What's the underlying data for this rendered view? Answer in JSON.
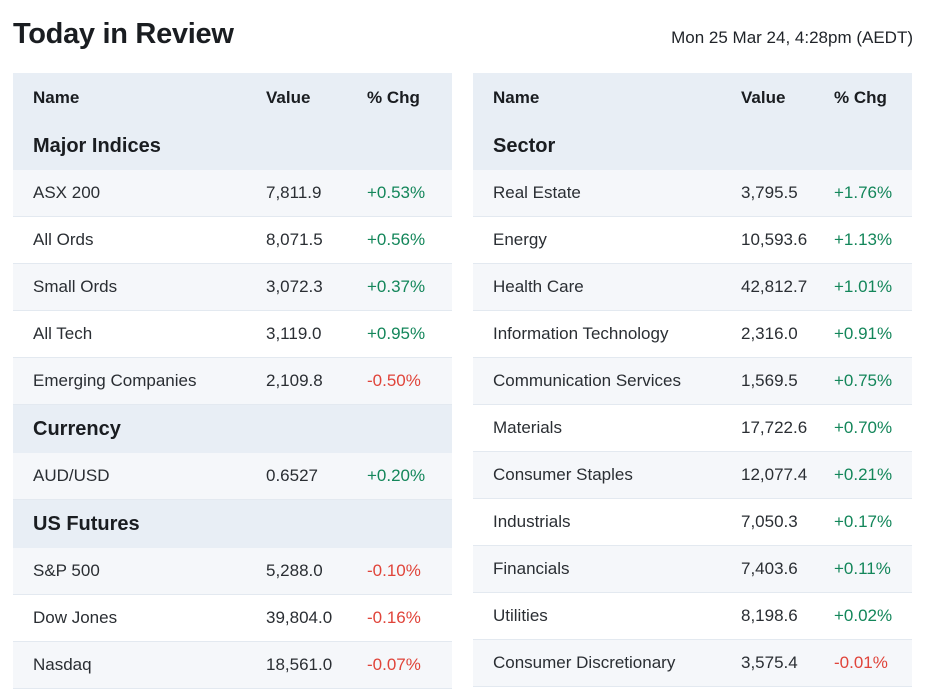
{
  "page": {
    "title": "Today in Review",
    "timestamp": "Mon 25 Mar 24, 4:28pm (AEDT)"
  },
  "colors": {
    "positive": "#13865a",
    "negative": "#e0443a",
    "header_bg": "#e8eef5",
    "alt_row_bg": "#f5f7fa"
  },
  "left_table": {
    "headers": {
      "name": "Name",
      "value": "Value",
      "change": "% Chg"
    },
    "sections": [
      {
        "title": "Major Indices",
        "rows": [
          {
            "name": "ASX 200",
            "value": "7,811.9",
            "change": "+0.53%"
          },
          {
            "name": "All Ords",
            "value": "8,071.5",
            "change": "+0.56%"
          },
          {
            "name": "Small Ords",
            "value": "3,072.3",
            "change": "+0.37%"
          },
          {
            "name": "All Tech",
            "value": "3,119.0",
            "change": "+0.95%"
          },
          {
            "name": "Emerging Companies",
            "value": "2,109.8",
            "change": "-0.50%"
          }
        ]
      },
      {
        "title": "Currency",
        "rows": [
          {
            "name": "AUD/USD",
            "value": "0.6527",
            "change": "+0.20%"
          }
        ]
      },
      {
        "title": "US Futures",
        "rows": [
          {
            "name": "S&P 500",
            "value": "5,288.0",
            "change": "-0.10%"
          },
          {
            "name": "Dow Jones",
            "value": "39,804.0",
            "change": "-0.16%"
          },
          {
            "name": "Nasdaq",
            "value": "18,561.0",
            "change": "-0.07%"
          }
        ]
      }
    ]
  },
  "right_table": {
    "headers": {
      "name": "Name",
      "value": "Value",
      "change": "% Chg"
    },
    "sections": [
      {
        "title": "Sector",
        "rows": [
          {
            "name": "Real Estate",
            "value": "3,795.5",
            "change": "+1.76%"
          },
          {
            "name": "Energy",
            "value": "10,593.6",
            "change": "+1.13%"
          },
          {
            "name": "Health Care",
            "value": "42,812.7",
            "change": "+1.01%"
          },
          {
            "name": "Information Technology",
            "value": "2,316.0",
            "change": "+0.91%"
          },
          {
            "name": "Communication Services",
            "value": "1,569.5",
            "change": "+0.75%"
          },
          {
            "name": "Materials",
            "value": "17,722.6",
            "change": "+0.70%"
          },
          {
            "name": "Consumer Staples",
            "value": "12,077.4",
            "change": "+0.21%"
          },
          {
            "name": "Industrials",
            "value": "7,050.3",
            "change": "+0.17%"
          },
          {
            "name": "Financials",
            "value": "7,403.6",
            "change": "+0.11%"
          },
          {
            "name": "Utilities",
            "value": "8,198.6",
            "change": "+0.02%"
          },
          {
            "name": "Consumer Discretionary",
            "value": "3,575.4",
            "change": "-0.01%"
          }
        ]
      }
    ]
  }
}
